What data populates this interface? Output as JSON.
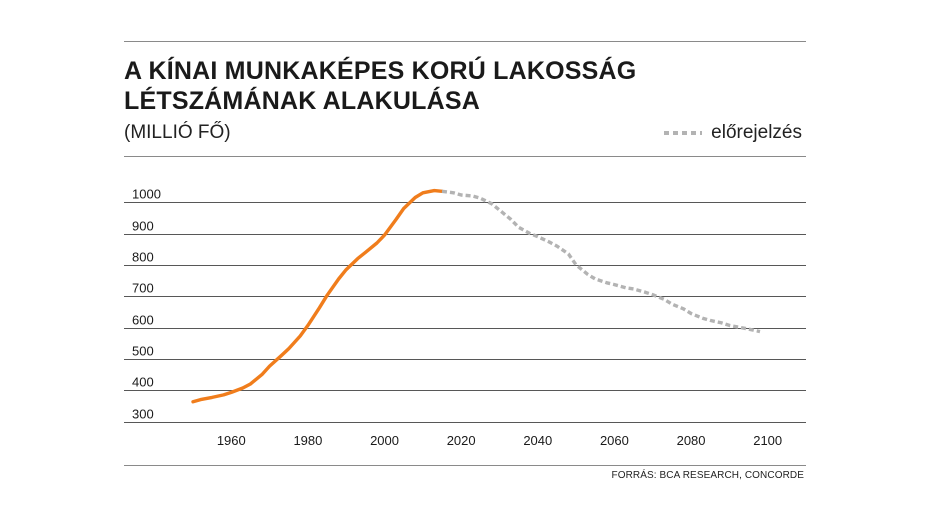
{
  "header": {
    "title_line1": "A KÍNAI MUNKAKÉPES KORÚ LAKOSSÁG",
    "title_line2": "LÉTSZÁMÁNAK ALAKULÁSA",
    "subtitle": "(MILLIÓ FŐ)"
  },
  "legend": {
    "forecast_label": "előrejelzés",
    "forecast_color": "#b3b3b3",
    "historical_color": "#f07d1c"
  },
  "footer": {
    "source": "FORRÁS: BCA RESEARCH, CONCORDE"
  },
  "chart_data": {
    "type": "line",
    "title": "A KÍNAI MUNKAKÉPES KORÚ LAKOSSÁG LÉTSZÁMÁNAK ALAKULÁSA",
    "ylabel": "(MILLIÓ FŐ)",
    "xlim": [
      1932,
      2110
    ],
    "ylim": [
      280,
      1030
    ],
    "xticks": [
      1960,
      1980,
      2000,
      2020,
      2040,
      2060,
      2080,
      2100
    ],
    "yticks": [
      300,
      400,
      500,
      600,
      700,
      800,
      900,
      1000
    ],
    "grid": "horizontal",
    "legend_position": "top-right",
    "series": [
      {
        "style": "solid",
        "color": "#f07d1c",
        "x": [
          1950,
          1952,
          1955,
          1958,
          1960,
          1963,
          1965,
          1968,
          1970,
          1973,
          1975,
          1978,
          1980,
          1983,
          1985,
          1988,
          1990,
          1993,
          1995,
          1998,
          2000,
          2003,
          2005,
          2008,
          2010,
          2013,
          2015
        ],
        "y": [
          338,
          345,
          352,
          360,
          368,
          382,
          395,
          425,
          452,
          485,
          508,
          548,
          582,
          638,
          678,
          730,
          760,
          795,
          815,
          845,
          870,
          920,
          955,
          990,
          1005,
          1012,
          1010
        ]
      },
      {
        "name": "előrejelzés",
        "style": "dashed",
        "color": "#b3b3b3",
        "x": [
          2015,
          2018,
          2020,
          2023,
          2025,
          2028,
          2030,
          2033,
          2035,
          2038,
          2040,
          2043,
          2045,
          2048,
          2050,
          2053,
          2055,
          2058,
          2060,
          2063,
          2065,
          2068,
          2070,
          2073,
          2075,
          2078,
          2080,
          2083,
          2085,
          2088,
          2090,
          2093,
          2095,
          2098
        ],
        "y": [
          1010,
          1005,
          998,
          995,
          988,
          970,
          950,
          920,
          895,
          875,
          865,
          848,
          835,
          810,
          775,
          745,
          730,
          718,
          712,
          702,
          698,
          688,
          680,
          665,
          650,
          635,
          620,
          605,
          598,
          590,
          582,
          575,
          570,
          562
        ]
      }
    ]
  }
}
